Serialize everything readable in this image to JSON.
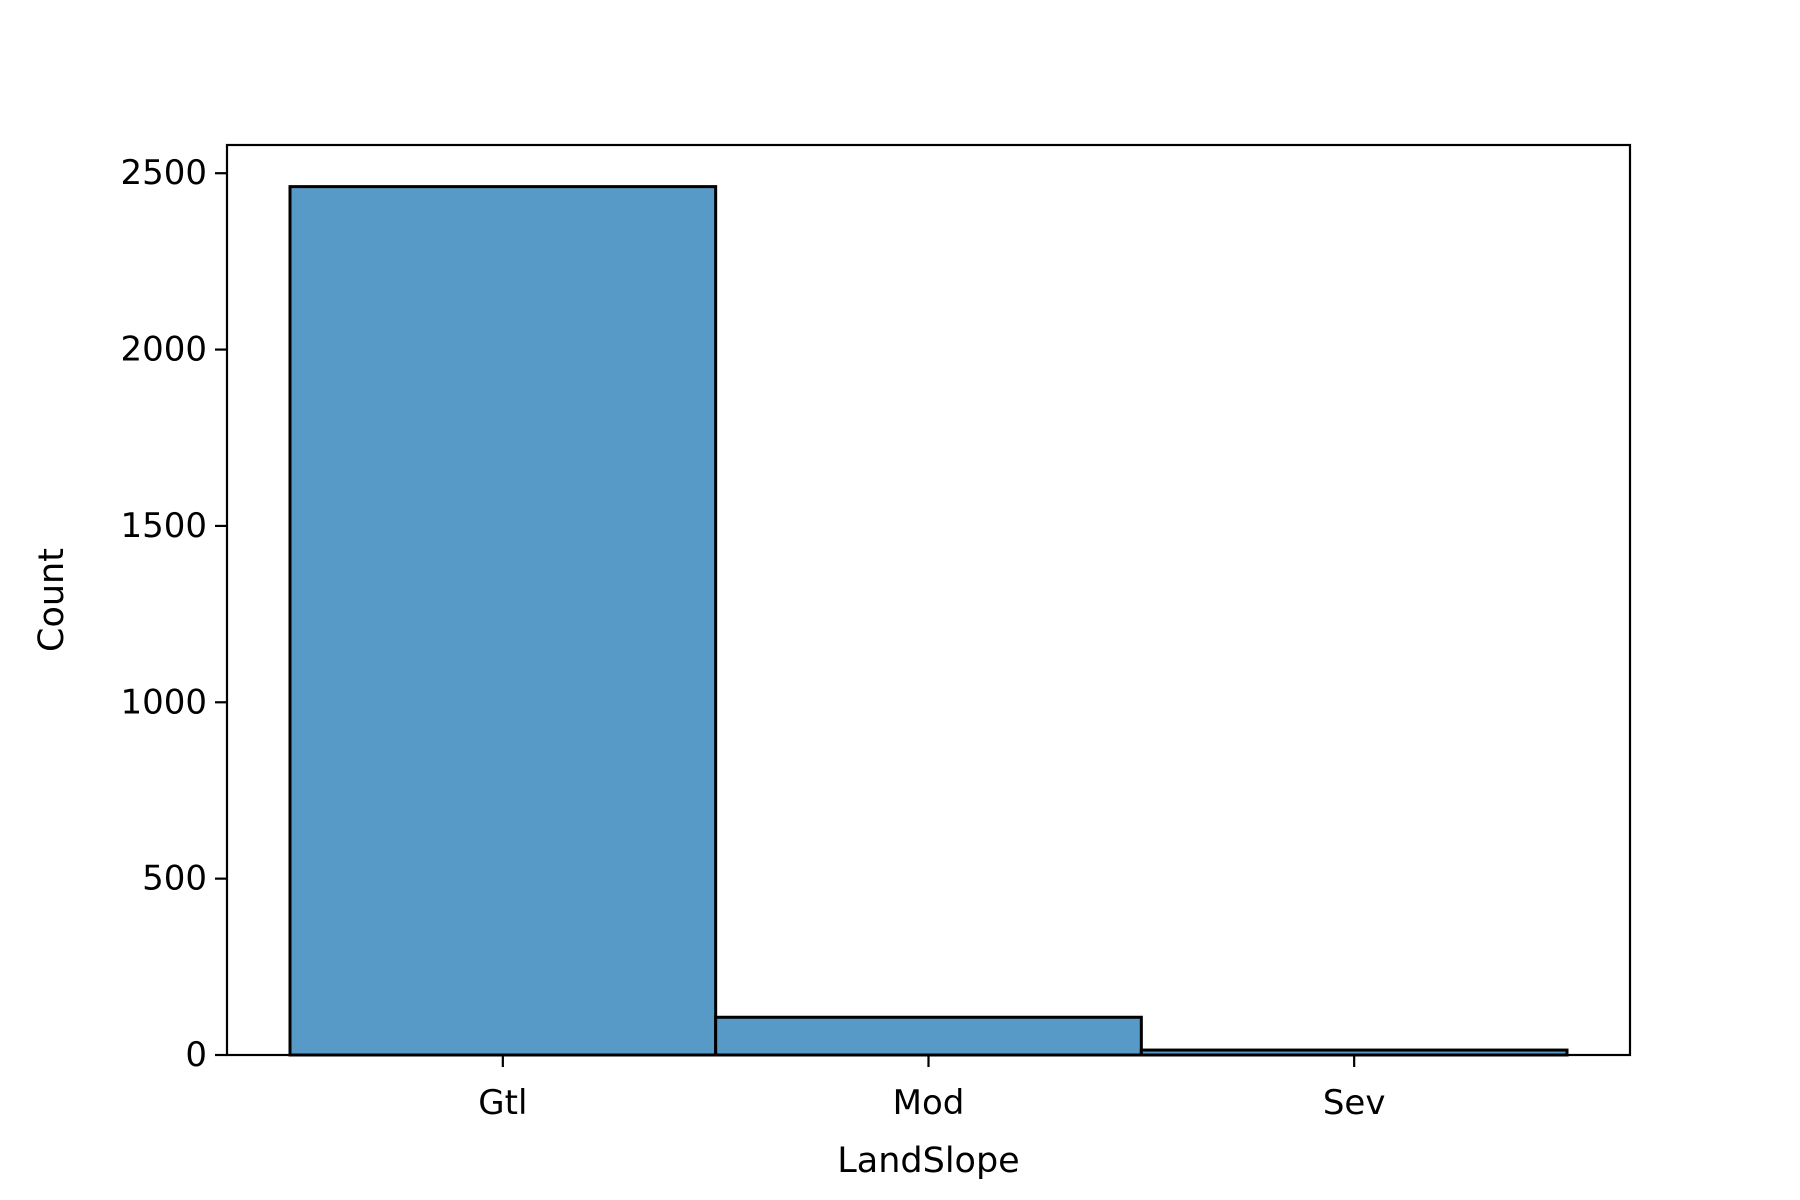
{
  "chart_data": {
    "type": "bar",
    "categories": [
      "Gtl",
      "Mod",
      "Sev"
    ],
    "values": [
      2462,
      107,
      14
    ],
    "title": "",
    "xlabel": "LandSlope",
    "ylabel": "Count",
    "ylim": [
      0,
      2580
    ],
    "yticks": [
      0,
      500,
      1000,
      1500,
      2000,
      2500
    ],
    "grid": false,
    "legend": "none",
    "colors": {
      "bar_fill": "#579ac7",
      "bar_edge": "#000000",
      "axis": "#000000",
      "background": "#ffffff"
    }
  }
}
